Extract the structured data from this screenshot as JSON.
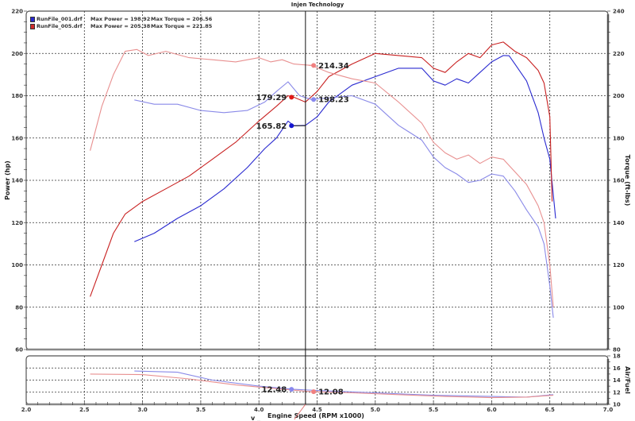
{
  "title": "Injen Technology",
  "legend": [
    {
      "file": "RunFile_001.drf",
      "max_power": "Max Power = 198.92",
      "max_torque": "Max Torque = 206.56",
      "color": "#2a2ad0"
    },
    {
      "file": "RunFile_005.drf",
      "max_power": "Max Power = 205.38",
      "max_torque": "Max Torque = 221.85",
      "color": "#d02a2a"
    }
  ],
  "axes": {
    "x_label": "Engine Speed (RPM x1000)",
    "x_label_prefix": "v _",
    "y_left_label": "Power (hp)",
    "y_right_label": "Torque (ft-lbs)",
    "afr_label": "Air/Fuel",
    "x_ticks": [
      "2.0",
      "2.5",
      "3.0",
      "3.5",
      "4.0",
      "4.5",
      "5.0",
      "5.5",
      "6.0",
      "6.5",
      "7.0"
    ],
    "y_left_ticks": [
      "60",
      "80",
      "100",
      "120",
      "140",
      "160",
      "180",
      "200",
      "220"
    ],
    "y_right_ticks": [
      "80",
      "100",
      "120",
      "140",
      "160",
      "180",
      "200",
      "220",
      "240"
    ],
    "afr_ticks": [
      "10",
      "12",
      "14",
      "16",
      "18"
    ]
  },
  "cursor": {
    "rpm": 4.4,
    "labels": {
      "power_001": "165.82",
      "power_005": "179.29",
      "torque_001": "198.23",
      "torque_005": "214.34",
      "afr_001": "12.48",
      "afr_005": "12.08"
    }
  },
  "chart_data": [
    {
      "type": "line",
      "title": "Injen Technology",
      "xlabel": "Engine Speed (RPM x1000)",
      "ylabel": "Power (hp)",
      "y2label": "Torque (ft-lbs)",
      "xlim": [
        2.0,
        7.0
      ],
      "ylim": [
        60,
        220
      ],
      "y2lim": [
        80,
        240
      ],
      "grid": true,
      "legend_position": "top-left",
      "series": [
        {
          "name": "RunFile_001.drf Power",
          "axis": "left",
          "color": "#2a2ad0",
          "x": [
            2.93,
            3.1,
            3.3,
            3.5,
            3.7,
            3.9,
            4.05,
            4.15,
            4.25,
            4.3,
            4.4,
            4.5,
            4.6,
            4.8,
            5.0,
            5.2,
            5.4,
            5.5,
            5.6,
            5.7,
            5.8,
            5.9,
            6.0,
            6.1,
            6.15,
            6.2,
            6.3,
            6.4,
            6.45,
            6.5,
            6.55
          ],
          "values": [
            111,
            115,
            122,
            128,
            136,
            146,
            155,
            160,
            168,
            165.82,
            166,
            170,
            177,
            185,
            189,
            193,
            193,
            187,
            185,
            188,
            186,
            191,
            196,
            199,
            198.9,
            195,
            187,
            172,
            160,
            150,
            122
          ]
        },
        {
          "name": "RunFile_005.drf Power",
          "axis": "left",
          "color": "#c82020",
          "x": [
            2.55,
            2.65,
            2.75,
            2.85,
            3.0,
            3.2,
            3.4,
            3.6,
            3.8,
            4.0,
            4.15,
            4.25,
            4.3,
            4.4,
            4.5,
            4.6,
            4.8,
            5.0,
            5.2,
            5.4,
            5.5,
            5.6,
            5.7,
            5.8,
            5.9,
            6.0,
            6.1,
            6.2,
            6.3,
            6.4,
            6.45,
            6.5,
            6.52
          ],
          "values": [
            85,
            100,
            115,
            124,
            130,
            136,
            142,
            150,
            158,
            168,
            175,
            180,
            179.29,
            177,
            182,
            189,
            195,
            200,
            199,
            198,
            193,
            191,
            196,
            200,
            198,
            204,
            205.38,
            201,
            198,
            192,
            186,
            170,
            130
          ]
        },
        {
          "name": "RunFile_001.drf Torque",
          "axis": "right",
          "color": "#8a8ae8",
          "x": [
            2.93,
            3.1,
            3.3,
            3.5,
            3.7,
            3.9,
            4.05,
            4.15,
            4.25,
            4.35,
            4.45,
            4.6,
            4.8,
            5.0,
            5.2,
            5.4,
            5.5,
            5.6,
            5.7,
            5.8,
            5.9,
            6.0,
            6.1,
            6.2,
            6.3,
            6.4,
            6.45,
            6.5,
            6.53
          ],
          "values": [
            198,
            196,
            196,
            193,
            192,
            193,
            197,
            202,
            206.56,
            200,
            198.23,
            199,
            200,
            196,
            186,
            179,
            171,
            166,
            163,
            159,
            160,
            163,
            162,
            155,
            146,
            138,
            130,
            110,
            95
          ]
        },
        {
          "name": "RunFile_005.drf Torque",
          "axis": "right",
          "color": "#e89090",
          "x": [
            2.55,
            2.65,
            2.75,
            2.85,
            2.95,
            3.05,
            3.2,
            3.4,
            3.6,
            3.8,
            4.0,
            4.1,
            4.2,
            4.3,
            4.45,
            4.6,
            4.8,
            5.0,
            5.2,
            5.4,
            5.5,
            5.6,
            5.7,
            5.8,
            5.9,
            6.0,
            6.1,
            6.2,
            6.3,
            6.4,
            6.45,
            6.5,
            6.53
          ],
          "values": [
            174,
            195,
            210,
            221,
            221.85,
            219,
            221,
            218,
            217,
            216,
            218,
            216,
            217,
            215,
            214.34,
            211,
            208,
            206,
            197,
            187,
            178,
            173,
            170,
            172,
            168,
            171,
            170,
            164,
            158,
            148,
            140,
            120,
            100
          ]
        }
      ]
    },
    {
      "type": "line",
      "title": "",
      "xlabel": "Engine Speed (RPM x1000)",
      "ylabel": "Air/Fuel",
      "xlim": [
        2.0,
        7.0
      ],
      "ylim": [
        10,
        18
      ],
      "grid": true,
      "series": [
        {
          "name": "RunFile_001.drf AFR",
          "color": "#8a8ae8",
          "x": [
            2.93,
            3.3,
            3.6,
            4.0,
            4.3,
            4.6,
            5.0,
            5.5,
            6.0,
            6.3,
            6.53
          ],
          "values": [
            15.5,
            15.3,
            14.0,
            13.0,
            12.48,
            12.2,
            11.9,
            11.5,
            11.3,
            11.2,
            11.6
          ]
        },
        {
          "name": "RunFile_005.drf AFR",
          "color": "#e89090",
          "x": [
            2.55,
            3.0,
            3.4,
            3.8,
            4.2,
            4.45,
            4.8,
            5.2,
            5.6,
            6.0,
            6.3,
            6.53
          ],
          "values": [
            15.0,
            14.9,
            14.2,
            13.2,
            12.5,
            12.08,
            11.9,
            11.6,
            11.3,
            11.1,
            11.2,
            11.5
          ]
        }
      ]
    }
  ]
}
